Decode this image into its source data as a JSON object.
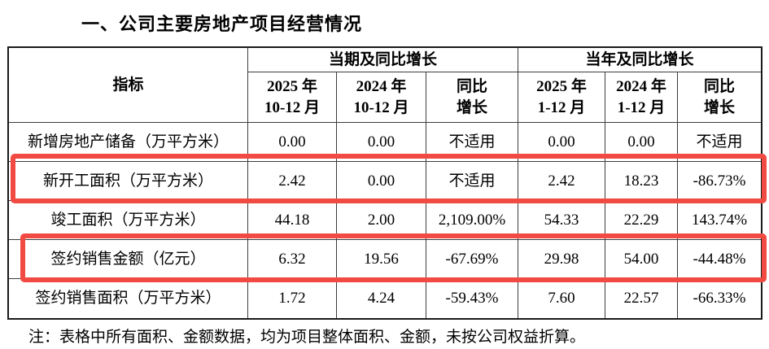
{
  "title": "一、公司主要房地产项目经营情况",
  "table": {
    "indicator_header": "指标",
    "groups": [
      {
        "label": "当期及同比增长"
      },
      {
        "label": "当年及同比增长"
      }
    ],
    "columns": [
      "2025 年\n10-12 月",
      "2024 年\n10-12 月",
      "同比\n增长",
      "2025 年\n1-12 月",
      "2024 年\n1-12 月",
      "同比\n增长"
    ],
    "rows": [
      {
        "label": "新增房地产储备（万平方米）",
        "values": [
          "0.00",
          "0.00",
          "不适用",
          "0.00",
          "0.00",
          "不适用"
        ],
        "highlighted": false
      },
      {
        "label": "新开工面积（万平方米）",
        "values": [
          "2.42",
          "0.00",
          "不适用",
          "2.42",
          "18.23",
          "-86.73%"
        ],
        "highlighted": true
      },
      {
        "label": "竣工面积（万平方米）",
        "values": [
          "44.18",
          "2.00",
          "2,109.00%",
          "54.33",
          "22.29",
          "143.74%"
        ],
        "highlighted": false
      },
      {
        "label": "签约销售金额（亿元）",
        "values": [
          "6.32",
          "19.56",
          "-67.69%",
          "29.98",
          "54.00",
          "-44.48%"
        ],
        "highlighted": true
      },
      {
        "label": "签约销售面积（万平方米）",
        "values": [
          "1.72",
          "4.24",
          "-59.43%",
          "7.60",
          "22.57",
          "-66.33%"
        ],
        "highlighted": false
      }
    ]
  },
  "note": "注：表格中所有面积、金额数据，均为项目整体面积、金额，未按公司权益折算。",
  "colors": {
    "highlight_red": "#f04a42"
  }
}
